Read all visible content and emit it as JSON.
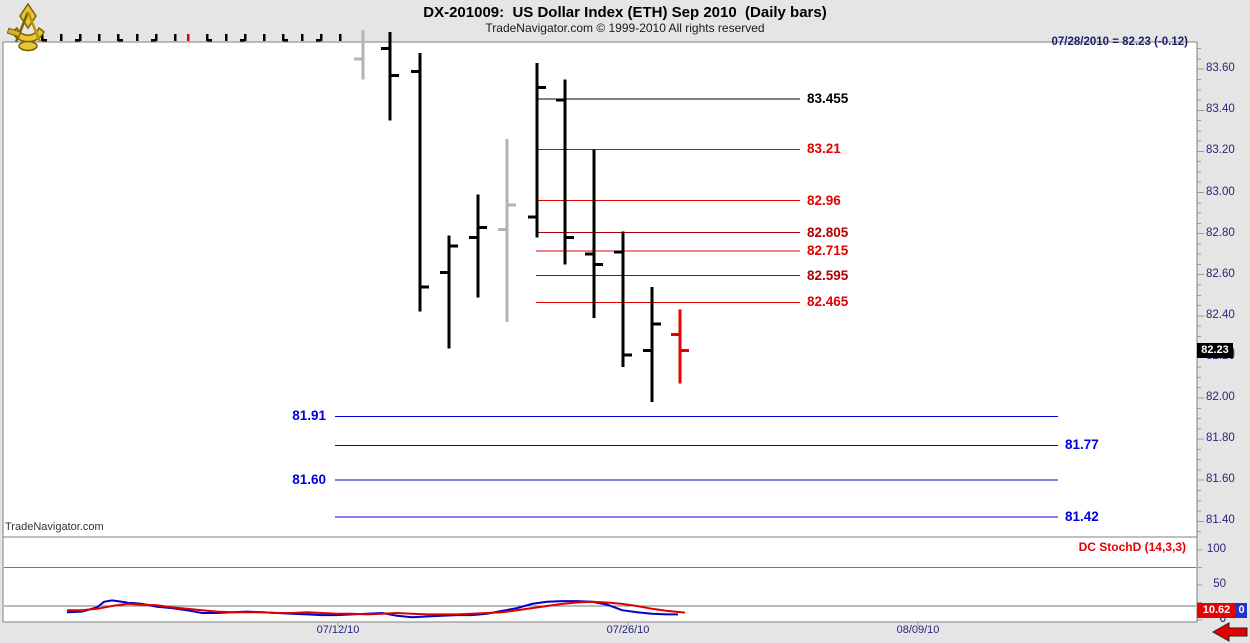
{
  "header": {
    "title": "DX-201009:  US Dollar Index (ETH) Sep 2010  (Daily bars)",
    "subtitle": "TradeNavigator.com © 1999-2010 All rights reserved",
    "quote": "07/28/2010 = 82.23 (-0.12)"
  },
  "watermark": "TradeNavigator.com",
  "colors": {
    "red": "#e60000",
    "dark_red": "#b00000",
    "blue": "#0000dd",
    "navy": "#26267e",
    "black": "#000000",
    "gray_bar": "#b3b3b3",
    "panel_border": "#808080",
    "grid": "#777777",
    "stoch_blue": "#0000cc",
    "stoch_red": "#dd0000"
  },
  "price_axis": {
    "labels": [
      "83.60",
      "83.40",
      "83.20",
      "83.00",
      "82.80",
      "82.60",
      "82.40",
      "82.20",
      "82.00",
      "81.80",
      "81.60",
      "81.40"
    ],
    "tag": "82.23",
    "hidden_label": "82.20"
  },
  "date_axis": {
    "labels": [
      {
        "text": "07/12/10",
        "x": 338
      },
      {
        "text": "07/26/10",
        "x": 628
      },
      {
        "text": "08/09/10",
        "x": 918
      }
    ]
  },
  "chart_data": {
    "type": "ohlc-bar",
    "title": "DX-201009: US Dollar Index (ETH) Sep 2010 (Daily bars)",
    "last_quote": {
      "date": "07/28/2010",
      "close": 82.23,
      "change": -0.12
    },
    "y_axis": {
      "min": 81.33,
      "max": 83.74,
      "tick_step": 0.2,
      "minor_step": 0.05
    },
    "bars": [
      {
        "x": 363,
        "color": "gray",
        "high": 83.79,
        "low": 83.55,
        "open": 83.65,
        "close": null
      },
      {
        "x": 390,
        "color": "black",
        "high": 83.78,
        "low": 83.35,
        "open": 83.7,
        "close": 83.57
      },
      {
        "x": 420,
        "color": "black",
        "high": 83.68,
        "low": 82.42,
        "open": 83.59,
        "close": 82.54
      },
      {
        "x": 449,
        "color": "black",
        "high": 82.79,
        "low": 82.24,
        "open": 82.61,
        "close": 82.74
      },
      {
        "x": 478,
        "color": "black",
        "high": 82.99,
        "low": 82.49,
        "open": 82.78,
        "close": 82.83
      },
      {
        "x": 507,
        "color": "gray",
        "high": 83.26,
        "low": 82.37,
        "open": 82.82,
        "close": 82.94
      },
      {
        "x": 537,
        "color": "black",
        "high": 83.63,
        "low": 82.78,
        "open": 82.88,
        "close": 83.51
      },
      {
        "x": 565,
        "color": "black",
        "high": 83.55,
        "low": 82.65,
        "open": 83.45,
        "close": 82.78
      },
      {
        "x": 594,
        "color": "black",
        "high": 83.21,
        "low": 82.39,
        "open": 82.7,
        "close": 82.65
      },
      {
        "x": 623,
        "color": "black",
        "high": 82.81,
        "low": 82.15,
        "open": 82.71,
        "close": 82.21
      },
      {
        "x": 652,
        "color": "black",
        "high": 82.54,
        "low": 81.98,
        "open": 82.23,
        "close": 82.36
      },
      {
        "x": 680,
        "color": "red",
        "high": 82.43,
        "low": 82.07,
        "open": 82.31,
        "close": 82.23
      }
    ],
    "levels": [
      {
        "label": "83.455",
        "price": 83.455,
        "color": "black",
        "x1": 538,
        "x2": 800,
        "label_side": "right"
      },
      {
        "label": "83.21",
        "price": 83.21,
        "color": "red",
        "x1": 538,
        "x2": 800,
        "label_side": "right"
      },
      {
        "label": "82.96",
        "price": 82.96,
        "color": "red",
        "x1": 536,
        "x2": 800,
        "label_side": "right"
      },
      {
        "label": "82.805",
        "price": 82.805,
        "color": "dark_red",
        "x1": 536,
        "x2": 800,
        "label_side": "right"
      },
      {
        "label": "82.715",
        "price": 82.715,
        "color": "red",
        "x1": 536,
        "x2": 800,
        "label_side": "right"
      },
      {
        "label": "82.595",
        "price": 82.595,
        "color": "dark_red",
        "x1": 536,
        "x2": 800,
        "label_side": "right"
      },
      {
        "label": "82.465",
        "price": 82.465,
        "color": "red",
        "x1": 536,
        "x2": 800,
        "label_side": "right"
      },
      {
        "label": "81.91",
        "price": 81.91,
        "color": "blue",
        "x1": 335,
        "x2": 1058,
        "label_side": "left"
      },
      {
        "label": "81.77",
        "price": 81.77,
        "color": "blue",
        "x1": 335,
        "x2": 1058,
        "label_side": "right"
      },
      {
        "label": "81.60",
        "price": 81.6,
        "color": "blue",
        "x1": 335,
        "x2": 1058,
        "label_side": "left"
      },
      {
        "label": "81.42",
        "price": 81.42,
        "color": "blue",
        "x1": 335,
        "x2": 1058,
        "label_side": "right"
      }
    ],
    "clipped_top_marks": {
      "y": 34,
      "marks": [
        {
          "x": 42,
          "nub": "r",
          "color": "black"
        },
        {
          "x": 61,
          "nub": null,
          "color": "black"
        },
        {
          "x": 80,
          "nub": "l",
          "color": "black"
        },
        {
          "x": 99,
          "nub": null,
          "color": "black"
        },
        {
          "x": 118,
          "nub": "r",
          "color": "black"
        },
        {
          "x": 137,
          "nub": null,
          "color": "black"
        },
        {
          "x": 156,
          "nub": "l",
          "color": "black"
        },
        {
          "x": 175,
          "nub": null,
          "color": "black"
        },
        {
          "x": 188,
          "nub": null,
          "color": "red"
        },
        {
          "x": 207,
          "nub": "r",
          "color": "black"
        },
        {
          "x": 226,
          "nub": null,
          "color": "black"
        },
        {
          "x": 245,
          "nub": "l",
          "color": "black"
        },
        {
          "x": 264,
          "nub": null,
          "color": "black"
        },
        {
          "x": 283,
          "nub": "r",
          "color": "black"
        },
        {
          "x": 302,
          "nub": null,
          "color": "black"
        },
        {
          "x": 321,
          "nub": "l",
          "color": "black"
        },
        {
          "x": 340,
          "nub": null,
          "color": "black"
        }
      ]
    },
    "stoch_pane": {
      "label": "DC StochD (14,3,3)",
      "axis_labels": [
        100,
        50,
        0
      ],
      "gridlines": [
        75,
        20
      ],
      "last_value_tag": "10.62",
      "last_value_tag_suffix": "0",
      "axis_zero_label": "0",
      "series": [
        {
          "name": "stoch-k",
          "color": "stoch_blue",
          "points": [
            [
              67,
              11
            ],
            [
              82,
              12
            ],
            [
              97,
              18
            ],
            [
              104,
              26
            ],
            [
              112,
              28
            ],
            [
              127,
              25
            ],
            [
              142,
              23
            ],
            [
              157,
              19
            ],
            [
              172,
              17
            ],
            [
              187,
              14
            ],
            [
              202,
              10
            ],
            [
              217,
              10
            ],
            [
              232,
              11
            ],
            [
              247,
              12
            ],
            [
              262,
              11
            ],
            [
              277,
              10
            ],
            [
              292,
              9
            ],
            [
              307,
              8
            ],
            [
              322,
              7
            ],
            [
              337,
              7
            ],
            [
              352,
              8
            ],
            [
              367,
              9
            ],
            [
              382,
              10
            ],
            [
              397,
              6
            ],
            [
              412,
              4
            ],
            [
              427,
              5
            ],
            [
              442,
              6
            ],
            [
              457,
              7
            ],
            [
              472,
              7
            ],
            [
              487,
              9
            ],
            [
              502,
              13
            ],
            [
              517,
              17
            ],
            [
              532,
              23
            ],
            [
              547,
              26
            ],
            [
              562,
              27
            ],
            [
              577,
              27
            ],
            [
              592,
              26
            ],
            [
              607,
              22
            ],
            [
              622,
              14
            ],
            [
              637,
              11
            ],
            [
              652,
              9
            ],
            [
              667,
              8
            ],
            [
              678,
              8
            ]
          ]
        },
        {
          "name": "stoch-d",
          "color": "stoch_red",
          "points": [
            [
              67,
              14
            ],
            [
              82,
              14
            ],
            [
              97,
              16
            ],
            [
              112,
              20
            ],
            [
              127,
              23
            ],
            [
              142,
              22
            ],
            [
              157,
              21
            ],
            [
              172,
              18
            ],
            [
              187,
              16
            ],
            [
              202,
              14
            ],
            [
              217,
              12
            ],
            [
              232,
              11
            ],
            [
              247,
              11
            ],
            [
              262,
              11
            ],
            [
              277,
              10
            ],
            [
              292,
              10
            ],
            [
              307,
              11
            ],
            [
              322,
              10
            ],
            [
              337,
              9
            ],
            [
              352,
              9
            ],
            [
              367,
              8
            ],
            [
              382,
              9
            ],
            [
              397,
              10
            ],
            [
              412,
              9
            ],
            [
              427,
              8
            ],
            [
              442,
              8
            ],
            [
              457,
              8
            ],
            [
              472,
              9
            ],
            [
              487,
              10
            ],
            [
              502,
              11
            ],
            [
              517,
              14
            ],
            [
              532,
              17
            ],
            [
              547,
              20
            ],
            [
              562,
              23
            ],
            [
              577,
              25
            ],
            [
              592,
              26
            ],
            [
              607,
              25
            ],
            [
              622,
              23
            ],
            [
              637,
              20
            ],
            [
              652,
              16
            ],
            [
              667,
              13
            ],
            [
              685,
              10.6
            ]
          ]
        }
      ]
    }
  }
}
